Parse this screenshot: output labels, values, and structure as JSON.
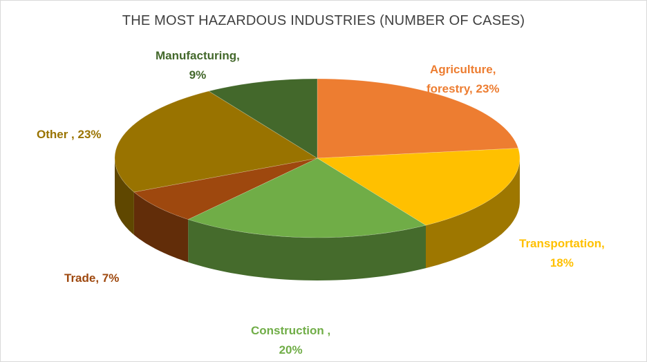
{
  "chart_data": {
    "type": "pie",
    "title": "THE MOST HAZARDOUS INDUSTRIES (NUMBER OF CASES)",
    "three_d": true,
    "slices": [
      {
        "label_line1": "Agriculture,",
        "label_line2": "forestry, 23%",
        "value": 23,
        "color": "#ED7D31",
        "label_color": "#ED7D31"
      },
      {
        "label_line1": "Transportation,",
        "label_line2": "18%",
        "value": 18,
        "color": "#FFC000",
        "label_color": "#FFC000"
      },
      {
        "label_line1": "Construction ,",
        "label_line2": "20%",
        "value": 20,
        "color": "#70AD47",
        "label_color": "#70AD47"
      },
      {
        "label_line1": "Trade, 7%",
        "label_line2": "",
        "value": 7,
        "color": "#9E480E",
        "label_color": "#9E480E"
      },
      {
        "label_line1": "Other , 23%",
        "label_line2": "",
        "value": 23,
        "color": "#997300",
        "label_color": "#997300"
      },
      {
        "label_line1": "Manufacturing,",
        "label_line2": "9%",
        "value": 9,
        "color": "#43682B",
        "label_color": "#43682B"
      }
    ]
  }
}
